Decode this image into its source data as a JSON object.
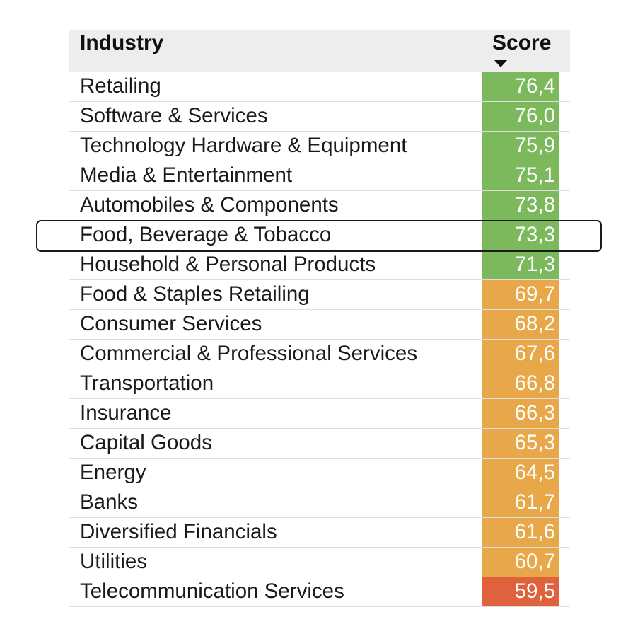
{
  "colors": {
    "high": "#7cb95c",
    "mid": "#e8a84a",
    "low": "#e0623c",
    "header_bg": "#ededed"
  },
  "header": {
    "industry_label": "Industry",
    "score_label": "Score",
    "sort_icon": "sort-descending-icon"
  },
  "highlighted_row_index": 5,
  "chart_data": {
    "type": "table",
    "columns": [
      "Industry",
      "Score"
    ],
    "sort": {
      "column": "Score",
      "order": "descending"
    },
    "rows": [
      {
        "industry": "Retailing",
        "score": "76,4",
        "value": 76.4,
        "band": "high"
      },
      {
        "industry": "Software & Services",
        "score": "76,0",
        "value": 76.0,
        "band": "high"
      },
      {
        "industry": "Technology Hardware & Equipment",
        "score": "75,9",
        "value": 75.9,
        "band": "high"
      },
      {
        "industry": "Media & Entertainment",
        "score": "75,1",
        "value": 75.1,
        "band": "high"
      },
      {
        "industry": "Automobiles & Components",
        "score": "73,8",
        "value": 73.8,
        "band": "high"
      },
      {
        "industry": "Food, Beverage & Tobacco",
        "score": "73,3",
        "value": 73.3,
        "band": "high"
      },
      {
        "industry": "Household & Personal Products",
        "score": "71,3",
        "value": 71.3,
        "band": "high"
      },
      {
        "industry": "Food & Staples Retailing",
        "score": "69,7",
        "value": 69.7,
        "band": "mid"
      },
      {
        "industry": "Consumer Services",
        "score": "68,2",
        "value": 68.2,
        "band": "mid"
      },
      {
        "industry": "Commercial & Professional Services",
        "score": "67,6",
        "value": 67.6,
        "band": "mid"
      },
      {
        "industry": "Transportation",
        "score": "66,8",
        "value": 66.8,
        "band": "mid"
      },
      {
        "industry": "Insurance",
        "score": "66,3",
        "value": 66.3,
        "band": "mid"
      },
      {
        "industry": "Capital Goods",
        "score": "65,3",
        "value": 65.3,
        "band": "mid"
      },
      {
        "industry": "Energy",
        "score": "64,5",
        "value": 64.5,
        "band": "mid"
      },
      {
        "industry": "Banks",
        "score": "61,7",
        "value": 61.7,
        "band": "mid"
      },
      {
        "industry": "Diversified Financials",
        "score": "61,6",
        "value": 61.6,
        "band": "mid"
      },
      {
        "industry": "Utilities",
        "score": "60,7",
        "value": 60.7,
        "band": "mid"
      },
      {
        "industry": "Telecommunication Services",
        "score": "59,5",
        "value": 59.5,
        "band": "low"
      }
    ]
  }
}
